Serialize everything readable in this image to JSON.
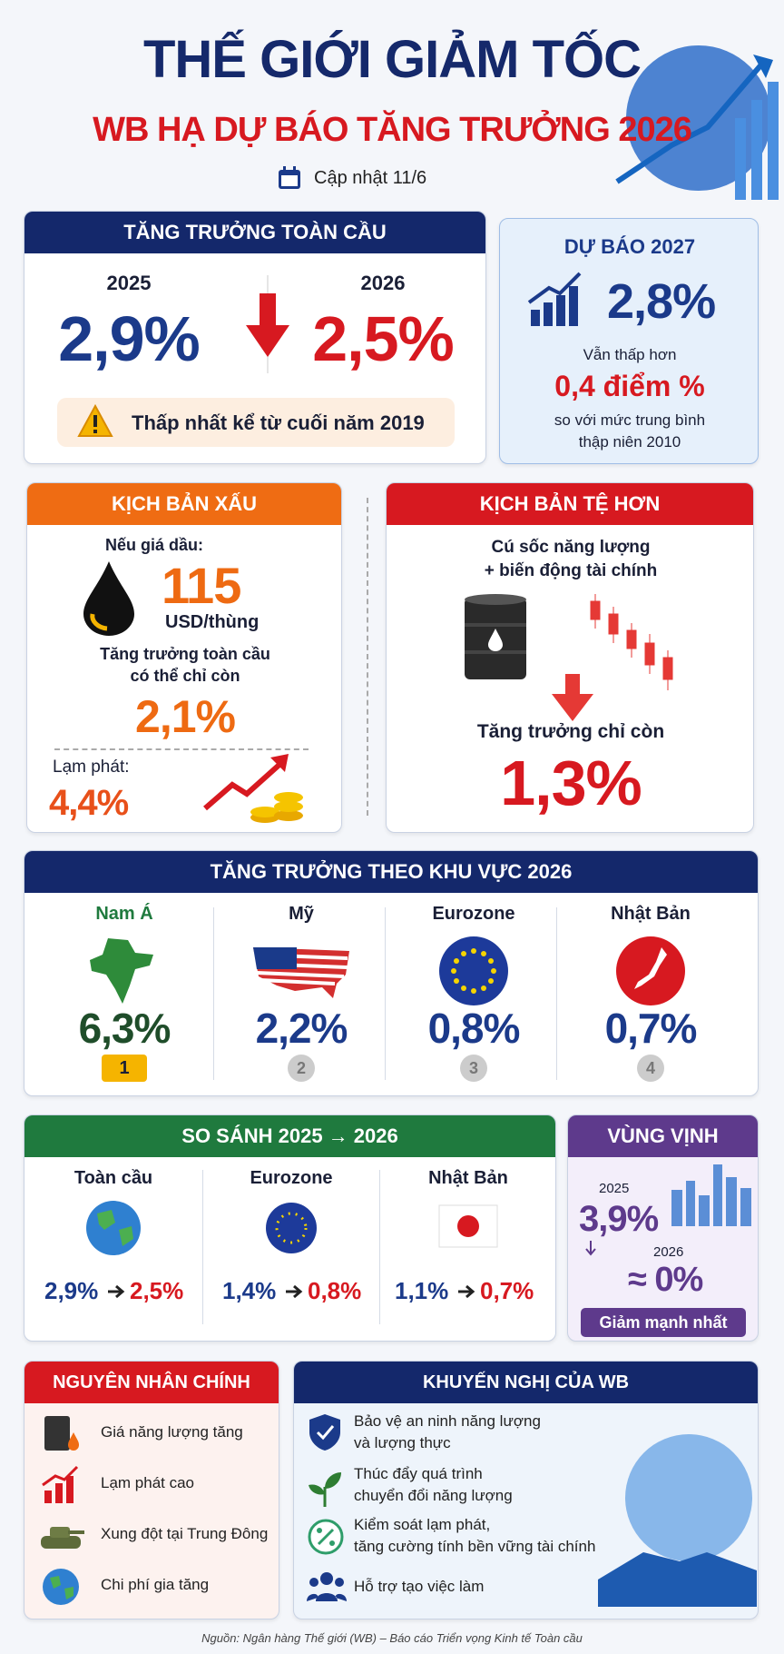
{
  "header": {
    "title": "THẾ GIỚI GIẢM TỐC",
    "subtitle": "WB HẠ DỰ BÁO TĂNG TRƯỞNG 2026",
    "update": "Cập nhật 11/6"
  },
  "global": {
    "title": "TĂNG TRƯỞNG TOÀN CẦU",
    "year1": "2025",
    "value1": "2,9%",
    "year2": "2026",
    "value2": "2,5%",
    "note": "Thấp nhất kể từ cuối năm 2019"
  },
  "forecast_2027": {
    "title": "DỰ BÁO 2027",
    "value": "2,8%",
    "line1": "Vẫn thấp hơn",
    "highlight": "0,4 điểm %",
    "line2": "so với mức trung bình",
    "line3": "thập niên 2010"
  },
  "bad_scenario": {
    "title": "KỊCH BẢN XẤU",
    "oil_label": "Nếu giá dầu:",
    "oil_price": "115",
    "oil_unit": "USD/thùng",
    "growth_label": [
      "Tăng trưởng toàn cầu",
      "có thể chỉ còn"
    ],
    "growth": "2,1%",
    "inflation_label": "Lạm phát:",
    "inflation": "4,4%"
  },
  "worse_scenario": {
    "title": "KỊCH BẢN TỆ HƠN",
    "cause": [
      "Cú sốc năng lượng",
      "+ biến động tài chính"
    ],
    "growth_label": "Tăng trưởng chỉ còn",
    "growth": "1,3%"
  },
  "regions": {
    "title": "TĂNG TRƯỞNG THEO KHU VỰC 2026",
    "items": [
      {
        "name": "Nam Á",
        "value": "6,3%",
        "rank": "1"
      },
      {
        "name": "Mỹ",
        "value": "2,2%",
        "rank": "2"
      },
      {
        "name": "Eurozone",
        "value": "0,8%",
        "rank": "3"
      },
      {
        "name": "Nhật Bản",
        "value": "0,7%",
        "rank": "4"
      }
    ]
  },
  "comparison": {
    "title": "SO SÁNH 2025 → 2026",
    "items": [
      {
        "name": "Toàn cầu",
        "from": "2,9%",
        "to": "2,5%"
      },
      {
        "name": "Eurozone",
        "from": "1,4%",
        "to": "0,8%"
      },
      {
        "name": "Nhật Bản",
        "from": "1,1%",
        "to": "0,7%"
      }
    ]
  },
  "gulf": {
    "title": "VÙNG VỊNH",
    "year1": "2025",
    "value1": "3,9%",
    "year2": "2026",
    "value2": "≈ 0%",
    "badge": "Giảm mạnh nhất"
  },
  "causes": {
    "title": "NGUYÊN NHÂN CHÍNH",
    "items": [
      "Giá năng lượng tăng",
      "Lạm phát cao",
      "Xung đột tại Trung Đông",
      "Chi phí gia tăng"
    ]
  },
  "recommendations": {
    "title": "KHUYẾN NGHỊ CỦA WB",
    "items": [
      [
        "Bảo vệ an ninh năng lượng",
        "và lượng thực"
      ],
      [
        "Thúc đẩy quá trình",
        "chuyển đổi năng lượng"
      ],
      [
        "Kiểm soát lạm phát,",
        "tăng cường tính bền vững tài chính"
      ],
      [
        "Hỗ trợ tạo việc làm"
      ]
    ]
  },
  "source": "Nguồn: Ngân hàng Thế giới (WB) – Báo cáo Triển vọng Kinh tế Toàn cầu"
}
